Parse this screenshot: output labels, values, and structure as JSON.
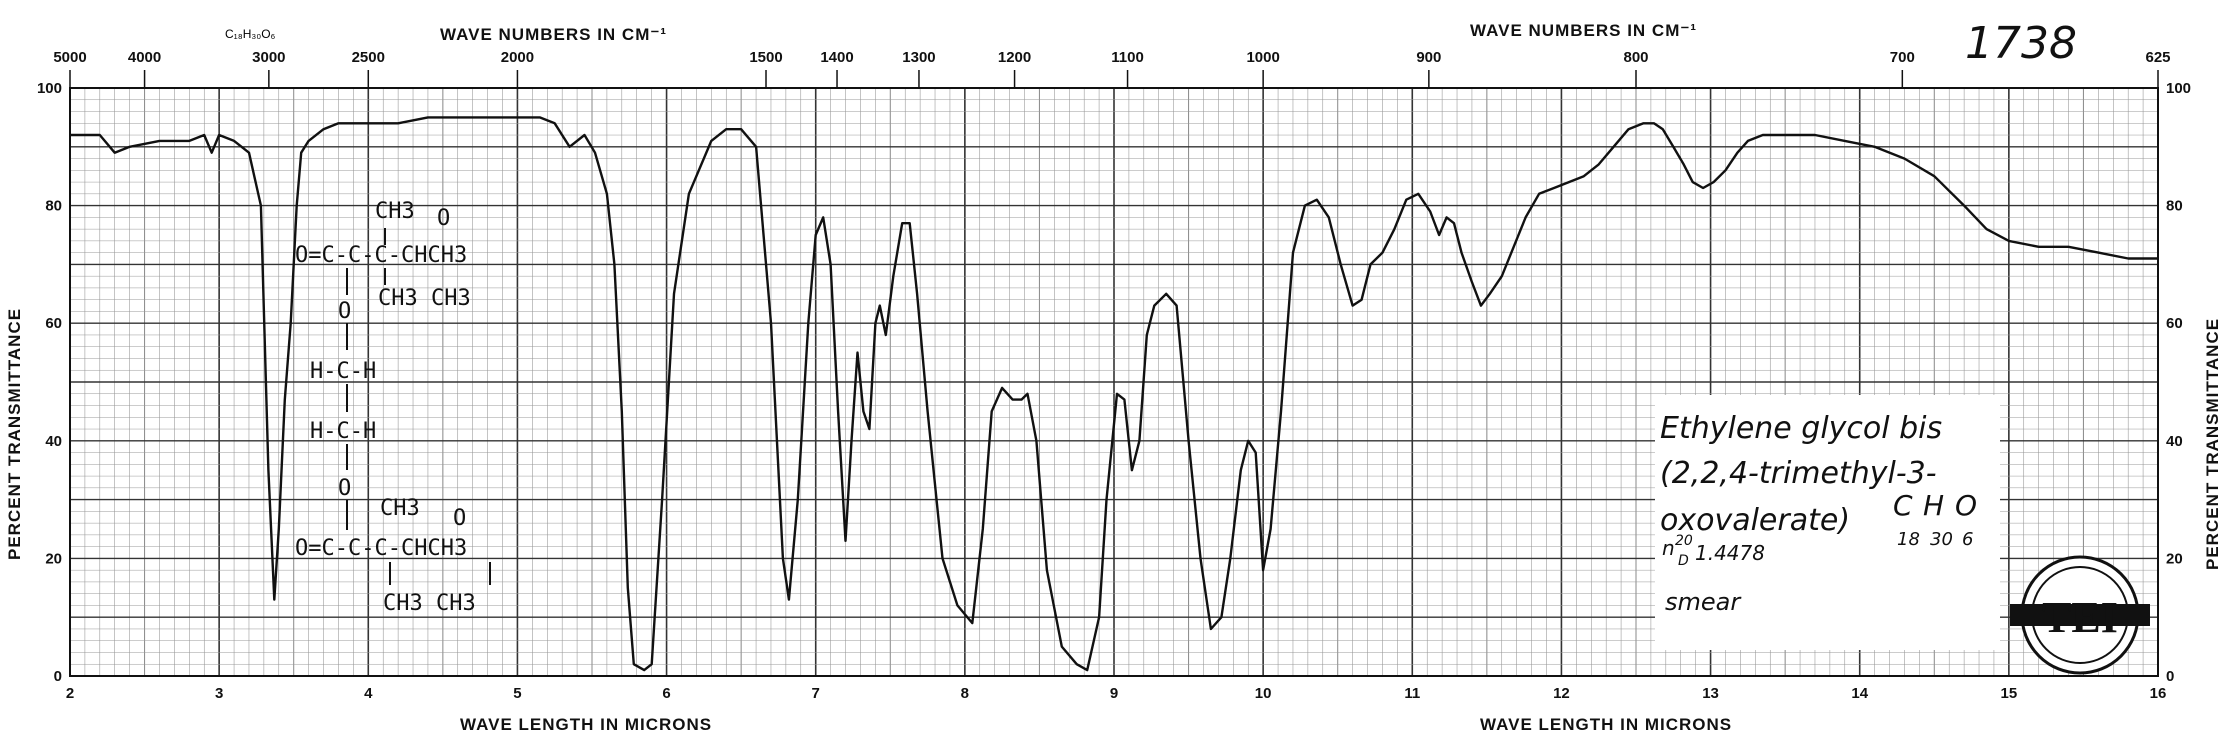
{
  "chart_data": {
    "type": "line",
    "spectrum_number": "1738",
    "top_header_left": "WAVE NUMBERS IN CM⁻¹",
    "top_header_right": "WAVE NUMBERS IN CM⁻¹",
    "top_small_formula": "C₁₈H₃₀O₆",
    "xlabel_left": "WAVE LENGTH IN MICRONS",
    "xlabel_right": "WAVE LENGTH IN MICRONS",
    "ylabel_left": "PERCENT TRANSMITTANCE",
    "ylabel_right": "PERCENT TRANSMITTANCE",
    "xlim": [
      2,
      16
    ],
    "ylim": [
      0,
      100
    ],
    "x_ticks": [
      2,
      3,
      4,
      5,
      6,
      7,
      8,
      9,
      10,
      11,
      12,
      13,
      14,
      15,
      16
    ],
    "y_ticks": [
      0,
      20,
      40,
      60,
      80,
      100
    ],
    "wavenumber_ticks": [
      {
        "label": "5000",
        "micron": 2.0
      },
      {
        "label": "4000",
        "micron": 2.5
      },
      {
        "label": "3000",
        "micron": 3.3333
      },
      {
        "label": "2500",
        "micron": 4.0
      },
      {
        "label": "2000",
        "micron": 5.0
      },
      {
        "label": "1500",
        "micron": 6.6667
      },
      {
        "label": "1400",
        "micron": 7.1429
      },
      {
        "label": "1300",
        "micron": 7.6923
      },
      {
        "label": "1200",
        "micron": 8.3333
      },
      {
        "label": "1100",
        "micron": 9.0909
      },
      {
        "label": "1000",
        "micron": 10.0
      },
      {
        "label": "900",
        "micron": 11.1111
      },
      {
        "label": "800",
        "micron": 12.5
      },
      {
        "label": "700",
        "micron": 14.2857
      },
      {
        "label": "625",
        "micron": 16.0
      }
    ],
    "grid": true,
    "series": [
      {
        "color": "#111111",
        "points": [
          [
            2.0,
            92
          ],
          [
            2.2,
            92
          ],
          [
            2.3,
            89
          ],
          [
            2.4,
            90
          ],
          [
            2.6,
            91
          ],
          [
            2.8,
            91
          ],
          [
            2.9,
            92
          ],
          [
            2.95,
            89
          ],
          [
            3.0,
            92
          ],
          [
            3.1,
            91
          ],
          [
            3.2,
            89
          ],
          [
            3.28,
            80
          ],
          [
            3.33,
            35
          ],
          [
            3.37,
            13
          ],
          [
            3.4,
            25
          ],
          [
            3.44,
            47
          ],
          [
            3.48,
            60
          ],
          [
            3.52,
            80
          ],
          [
            3.55,
            89
          ],
          [
            3.6,
            91
          ],
          [
            3.7,
            93
          ],
          [
            3.8,
            94
          ],
          [
            4.0,
            94
          ],
          [
            4.2,
            94
          ],
          [
            4.4,
            95
          ],
          [
            4.6,
            95
          ],
          [
            4.8,
            95
          ],
          [
            5.0,
            95
          ],
          [
            5.15,
            95
          ],
          [
            5.25,
            94
          ],
          [
            5.35,
            90
          ],
          [
            5.45,
            92
          ],
          [
            5.52,
            89
          ],
          [
            5.6,
            82
          ],
          [
            5.65,
            70
          ],
          [
            5.7,
            45
          ],
          [
            5.74,
            15
          ],
          [
            5.78,
            2
          ],
          [
            5.85,
            1
          ],
          [
            5.9,
            2
          ],
          [
            5.97,
            30
          ],
          [
            6.05,
            65
          ],
          [
            6.15,
            82
          ],
          [
            6.3,
            91
          ],
          [
            6.4,
            93
          ],
          [
            6.5,
            93
          ],
          [
            6.6,
            90
          ],
          [
            6.7,
            60
          ],
          [
            6.78,
            20
          ],
          [
            6.82,
            13
          ],
          [
            6.88,
            30
          ],
          [
            6.95,
            60
          ],
          [
            7.0,
            75
          ],
          [
            7.05,
            78
          ],
          [
            7.1,
            70
          ],
          [
            7.15,
            45
          ],
          [
            7.2,
            23
          ],
          [
            7.24,
            40
          ],
          [
            7.28,
            55
          ],
          [
            7.32,
            45
          ],
          [
            7.36,
            42
          ],
          [
            7.4,
            60
          ],
          [
            7.43,
            63
          ],
          [
            7.47,
            58
          ],
          [
            7.52,
            68
          ],
          [
            7.58,
            77
          ],
          [
            7.63,
            77
          ],
          [
            7.68,
            65
          ],
          [
            7.75,
            45
          ],
          [
            7.85,
            20
          ],
          [
            7.95,
            12
          ],
          [
            8.05,
            9
          ],
          [
            8.12,
            25
          ],
          [
            8.18,
            45
          ],
          [
            8.25,
            49
          ],
          [
            8.32,
            47
          ],
          [
            8.38,
            47
          ],
          [
            8.42,
            48
          ],
          [
            8.48,
            40
          ],
          [
            8.55,
            18
          ],
          [
            8.65,
            5
          ],
          [
            8.75,
            2
          ],
          [
            8.82,
            1
          ],
          [
            8.9,
            10
          ],
          [
            8.95,
            30
          ],
          [
            9.02,
            48
          ],
          [
            9.07,
            47
          ],
          [
            9.12,
            35
          ],
          [
            9.17,
            40
          ],
          [
            9.22,
            58
          ],
          [
            9.27,
            63
          ],
          [
            9.35,
            65
          ],
          [
            9.42,
            63
          ],
          [
            9.5,
            40
          ],
          [
            9.58,
            20
          ],
          [
            9.65,
            8
          ],
          [
            9.72,
            10
          ],
          [
            9.78,
            20
          ],
          [
            9.85,
            35
          ],
          [
            9.9,
            40
          ],
          [
            9.95,
            38
          ],
          [
            10.0,
            18
          ],
          [
            10.05,
            25
          ],
          [
            10.12,
            45
          ],
          [
            10.2,
            72
          ],
          [
            10.28,
            80
          ],
          [
            10.36,
            81
          ],
          [
            10.44,
            78
          ],
          [
            10.52,
            70
          ],
          [
            10.6,
            63
          ],
          [
            10.66,
            64
          ],
          [
            10.72,
            70
          ],
          [
            10.8,
            72
          ],
          [
            10.88,
            76
          ],
          [
            10.96,
            81
          ],
          [
            11.04,
            82
          ],
          [
            11.12,
            79
          ],
          [
            11.18,
            75
          ],
          [
            11.23,
            78
          ],
          [
            11.28,
            77
          ],
          [
            11.33,
            72
          ],
          [
            11.4,
            67
          ],
          [
            11.46,
            63
          ],
          [
            11.52,
            65
          ],
          [
            11.6,
            68
          ],
          [
            11.68,
            73
          ],
          [
            11.76,
            78
          ],
          [
            11.85,
            82
          ],
          [
            11.95,
            83
          ],
          [
            12.05,
            84
          ],
          [
            12.15,
            85
          ],
          [
            12.25,
            87
          ],
          [
            12.35,
            90
          ],
          [
            12.45,
            93
          ],
          [
            12.55,
            94
          ],
          [
            12.62,
            94
          ],
          [
            12.68,
            93
          ],
          [
            12.75,
            90
          ],
          [
            12.82,
            87
          ],
          [
            12.88,
            84
          ],
          [
            12.95,
            83
          ],
          [
            13.02,
            84
          ],
          [
            13.1,
            86
          ],
          [
            13.18,
            89
          ],
          [
            13.25,
            91
          ],
          [
            13.35,
            92
          ],
          [
            13.5,
            92
          ],
          [
            13.7,
            92
          ],
          [
            13.9,
            91
          ],
          [
            14.1,
            90
          ],
          [
            14.3,
            88
          ],
          [
            14.5,
            85
          ],
          [
            14.7,
            80
          ],
          [
            14.85,
            76
          ],
          [
            15.0,
            74
          ],
          [
            15.2,
            73
          ],
          [
            15.4,
            73
          ],
          [
            15.6,
            72
          ],
          [
            15.8,
            71
          ],
          [
            16.0,
            71
          ]
        ]
      }
    ],
    "annotation_name_lines": [
      "Ethylene glycol bis",
      "(2,2,4-trimethyl-3-",
      "oxovalerate)"
    ],
    "annotation_formula": {
      "c": "C",
      "h": "H",
      "o": "O",
      "c_n": "18",
      "h_n": "30",
      "o_n": "6"
    },
    "annotation_refractive": {
      "n": "n",
      "sup": "20",
      "sub": "D",
      "value": "1.4478"
    },
    "annotation_sample": "smear",
    "structure_lines": {
      "top_ch3": "CH3",
      "top_row": "O=C-C-C-CHCH3",
      "top_row_bottom": "CH3    CH3",
      "o1": "O",
      "hch1": "H-C-H",
      "hch2": "H-C-H",
      "o2": "O",
      "bot_ch3": "CH3",
      "bot_row": "O=C-C-C-CHCH3",
      "bot_row_bottom": "CH3    CH3",
      "keto_o_top": "O",
      "keto_o_bot": "O"
    },
    "logo_text": "TEI"
  }
}
